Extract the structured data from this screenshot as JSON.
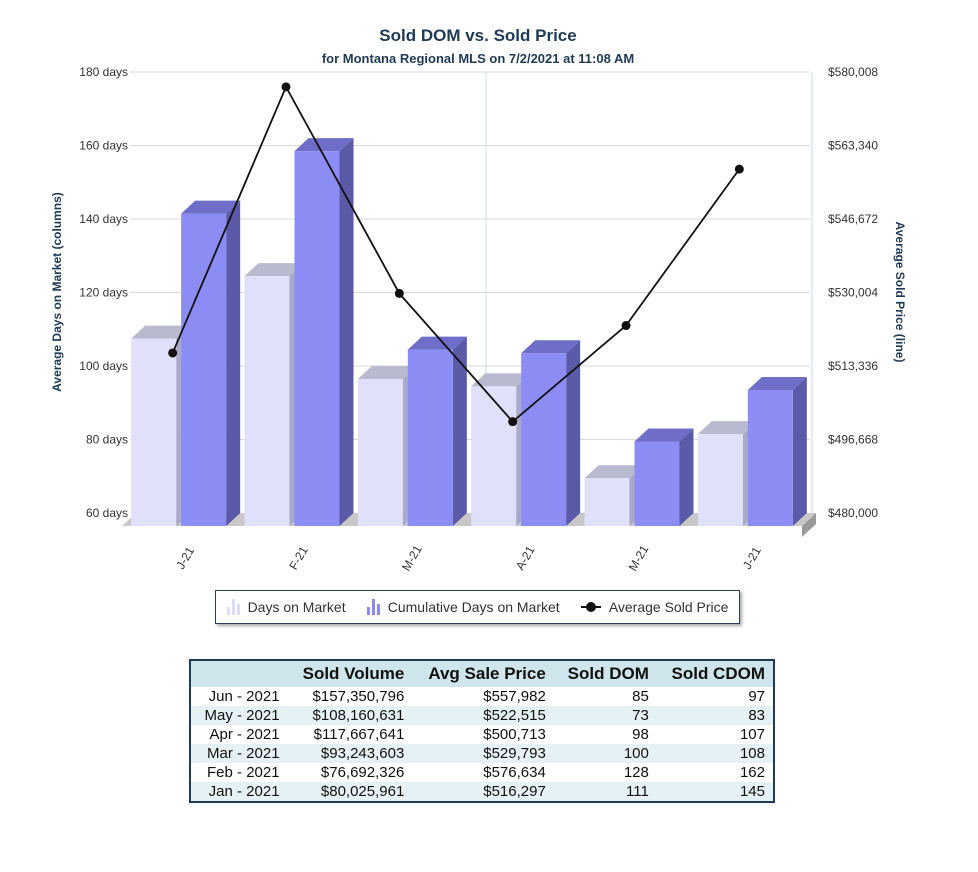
{
  "chart_data": {
    "type": "bar",
    "title": "Sold DOM vs. Sold Price",
    "subtitle": "for Montana Regional MLS on 7/2/2021 at 11:08 AM",
    "categories": [
      "J-21",
      "F-21",
      "M-21",
      "A-21",
      "M-21",
      "J-21"
    ],
    "ylabel": "Average Days on Market (columns)",
    "y2label": "Average Sold Price (line)",
    "ylim": [
      60,
      180
    ],
    "y_ticks": [
      "60 days",
      "80 days",
      "100 days",
      "120 days",
      "140 days",
      "160 days",
      "180 days"
    ],
    "y2lim": [
      480000,
      580008
    ],
    "y2_ticks": [
      "$480,000",
      "$496,668",
      "$513,336",
      "$530,004",
      "$546,672",
      "$563,340",
      "$580,008"
    ],
    "series": [
      {
        "name": "Days on Market",
        "type": "bar",
        "color": "#dcdcf8",
        "values": [
          111,
          128,
          100,
          98,
          73,
          85
        ]
      },
      {
        "name": "Cumulative Days on Market",
        "type": "bar",
        "color": "#8c8cf0",
        "values": [
          145,
          162,
          108,
          107,
          83,
          97
        ]
      },
      {
        "name": "Average Sold Price",
        "type": "line",
        "color": "#111111",
        "values": [
          516297,
          576634,
          529793,
          500713,
          522515,
          557982
        ]
      }
    ],
    "legend_position": "bottom",
    "grid": true
  },
  "table": {
    "headers": [
      "",
      "Sold Volume",
      "Avg Sale Price",
      "Sold DOM",
      "Sold CDOM"
    ],
    "rows": [
      [
        "Jun - 2021",
        "$157,350,796",
        "$557,982",
        "85",
        "97"
      ],
      [
        "May - 2021",
        "$108,160,631",
        "$522,515",
        "73",
        "83"
      ],
      [
        "Apr - 2021",
        "$117,667,641",
        "$500,713",
        "98",
        "107"
      ],
      [
        "Mar - 2021",
        "$93,243,603",
        "$529,793",
        "100",
        "108"
      ],
      [
        "Feb - 2021",
        "$76,692,326",
        "$576,634",
        "128",
        "162"
      ],
      [
        "Jan - 2021",
        "$80,025,961",
        "$516,297",
        "111",
        "145"
      ]
    ]
  }
}
